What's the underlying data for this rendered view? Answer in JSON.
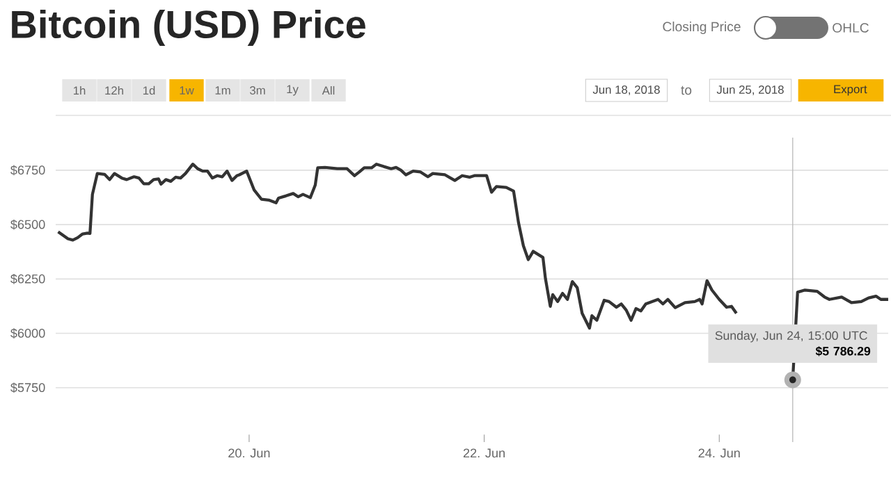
{
  "chart_data": {
    "type": "line",
    "title": "Bitcoin (USD) Price",
    "color": "#333333",
    "grid": "y",
    "x": [
      "2018-06-18T09:00",
      "2018-06-18T11:00",
      "2018-06-18T12:00",
      "2018-06-18T13:00",
      "2018-06-18T14:00",
      "2018-06-18T15:00",
      "2018-06-18T15:30",
      "2018-06-18T16:00",
      "2018-06-18T17:00",
      "2018-06-18T18:30",
      "2018-06-18T19:30",
      "2018-06-18T20:30",
      "2018-06-18T22:00",
      "2018-06-18T23:00",
      "2018-06-19T00:30",
      "2018-06-19T01:30",
      "2018-06-19T02:30",
      "2018-06-19T03:30",
      "2018-06-19T04:30",
      "2018-06-19T05:30",
      "2018-06-19T06:00",
      "2018-06-19T07:00",
      "2018-06-19T08:00",
      "2018-06-19T09:00",
      "2018-06-19T10:00",
      "2018-06-19T11:00",
      "2018-06-19T12:30",
      "2018-06-19T13:30",
      "2018-06-19T14:30",
      "2018-06-19T15:30",
      "2018-06-19T16:30",
      "2018-06-19T17:30",
      "2018-06-19T18:30",
      "2018-06-19T19:30",
      "2018-06-19T20:30",
      "2018-06-19T21:30",
      "2018-06-19T22:00",
      "2018-06-19T23:30",
      "2018-06-20T01:00",
      "2018-06-20T02:30",
      "2018-06-20T04:00",
      "2018-06-20T05:30",
      "2018-06-20T06:00",
      "2018-06-20T07:30",
      "2018-06-20T09:00",
      "2018-06-20T10:00",
      "2018-06-20T11:00",
      "2018-06-20T12:30",
      "2018-06-20T13:30",
      "2018-06-20T14:00",
      "2018-06-20T15:30",
      "2018-06-20T18:00",
      "2018-06-20T20:00",
      "2018-06-20T21:30",
      "2018-06-20T22:30",
      "2018-06-20T23:30",
      "2018-06-21T01:00",
      "2018-06-21T02:00",
      "2018-06-21T03:30",
      "2018-06-21T05:00",
      "2018-06-21T06:00",
      "2018-06-21T07:00",
      "2018-06-21T08:00",
      "2018-06-21T09:30",
      "2018-06-21T11:00",
      "2018-06-21T12:30",
      "2018-06-21T13:30",
      "2018-06-21T16:00",
      "2018-06-21T18:00",
      "2018-06-21T19:30",
      "2018-06-21T21:00",
      "2018-06-21T22:00",
      "2018-06-22T00:30",
      "2018-06-22T01:30",
      "2018-06-22T02:30",
      "2018-06-22T04:30",
      "2018-06-22T06:00",
      "2018-06-22T07:00",
      "2018-06-22T08:00",
      "2018-06-22T09:00",
      "2018-06-22T10:00",
      "2018-06-22T12:00",
      "2018-06-22T12:30",
      "2018-06-22T13:30",
      "2018-06-22T14:00",
      "2018-06-22T15:00",
      "2018-06-22T16:00",
      "2018-06-22T17:00",
      "2018-06-22T18:00",
      "2018-06-22T19:00",
      "2018-06-22T20:00",
      "2018-06-22T21:30",
      "2018-06-22T22:00",
      "2018-06-22T23:00",
      "2018-06-23T00:30",
      "2018-06-23T01:30",
      "2018-06-23T03:00",
      "2018-06-23T04:00",
      "2018-06-23T05:00",
      "2018-06-23T06:00",
      "2018-06-23T07:00",
      "2018-06-23T08:00",
      "2018-06-23T09:00",
      "2018-06-23T11:30",
      "2018-06-23T12:30",
      "2018-06-23T13:30",
      "2018-06-23T15:00",
      "2018-06-23T17:00",
      "2018-06-23T19:00",
      "2018-06-23T20:00",
      "2018-06-23T20:30",
      "2018-06-23T21:30",
      "2018-06-23T22:30",
      "2018-06-24T00:00",
      "2018-06-24T01:30",
      "2018-06-24T02:30",
      "2018-06-24T03:30",
      "2018-06-24T04:00",
      "2018-06-24T15:00",
      "2018-06-24T16:00",
      "2018-06-24T17:30",
      "2018-06-24T20:00",
      "2018-06-24T21:30",
      "2018-06-24T22:30",
      "2018-06-25T01:00",
      "2018-06-25T03:00",
      "2018-06-25T05:00",
      "2018-06-25T06:30",
      "2018-06-25T08:00",
      "2018-06-25T09:00",
      "2018-06-25T10:30"
    ],
    "values": [
      6467,
      6435,
      6429,
      6440,
      6457,
      6461,
      6459,
      6639,
      6735,
      6731,
      6707,
      6735,
      6714,
      6707,
      6720,
      6714,
      6688,
      6688,
      6707,
      6710,
      6686,
      6707,
      6699,
      6718,
      6714,
      6735,
      6778,
      6757,
      6746,
      6746,
      6714,
      6725,
      6720,
      6746,
      6703,
      6725,
      6729,
      6746,
      6660,
      6617,
      6613,
      6600,
      6622,
      6632,
      6643,
      6628,
      6639,
      6624,
      6682,
      6761,
      6763,
      6757,
      6757,
      6725,
      6742,
      6761,
      6761,
      6778,
      6767,
      6757,
      6763,
      6750,
      6729,
      6746,
      6742,
      6720,
      6735,
      6729,
      6703,
      6725,
      6718,
      6725,
      6725,
      6649,
      6675,
      6671,
      6654,
      6510,
      6403,
      6339,
      6377,
      6349,
      6253,
      6124,
      6178,
      6146,
      6184,
      6156,
      6238,
      6210,
      6092,
      6024,
      6081,
      6060,
      6152,
      6146,
      6120,
      6135,
      6107,
      6060,
      6114,
      6103,
      6135,
      6156,
      6135,
      6156,
      6118,
      6141,
      6146,
      6156,
      6135,
      6242,
      6199,
      6156,
      6120,
      6124,
      6092,
      null,
      5786.29,
      6189,
      6199,
      6193,
      6167,
      6156,
      6167,
      6141,
      6146,
      6163,
      6171,
      6156,
      6156
    ],
    "xlim": [
      "2018-06-18T08:30",
      "2018-06-25T10:30"
    ],
    "ylim": [
      5500,
      6900
    ],
    "xticks": [
      {
        "value": "2018-06-20",
        "label": "20. Jun"
      },
      {
        "value": "2018-06-22",
        "label": "22. Jun"
      },
      {
        "value": "2018-06-24",
        "label": "24. Jun"
      }
    ],
    "yticks": [
      {
        "value": 5750,
        "label": "$5750"
      },
      {
        "value": 6000,
        "label": "$6000"
      },
      {
        "value": 6250,
        "label": "$6250"
      },
      {
        "value": 6500,
        "label": "$6500"
      },
      {
        "value": 6750,
        "label": "$6750"
      }
    ],
    "ref_lines": [
      {
        "axis": "x",
        "value": "2018-06-24T15:00",
        "color": "#bbbbbb"
      }
    ],
    "value_labels": [
      null,
      null,
      null,
      null,
      null,
      null,
      null,
      null,
      null,
      null,
      null,
      null,
      null,
      null,
      null,
      null,
      null,
      null,
      null,
      null,
      null,
      null,
      null,
      null,
      null,
      null,
      null,
      null,
      null,
      null,
      null,
      null,
      null,
      null,
      null,
      null,
      null,
      null,
      null,
      null,
      null,
      null,
      null,
      null,
      null,
      null,
      null,
      null,
      null,
      null,
      null,
      null,
      null,
      null,
      null,
      null,
      null,
      null,
      null,
      null,
      null,
      null,
      null,
      null,
      null,
      null,
      null,
      null,
      null,
      null,
      null,
      null,
      null,
      null,
      null,
      null,
      null,
      null,
      null,
      null,
      null,
      null,
      null,
      null,
      null,
      null,
      null,
      null,
      null,
      null,
      null,
      null,
      null,
      null,
      null,
      null,
      null,
      null,
      null,
      null,
      null,
      null,
      null,
      null,
      null,
      null,
      null,
      null,
      null,
      null,
      null,
      null,
      null,
      null,
      null,
      null,
      null,
      null,
      "$5 786.29",
      null,
      null,
      null,
      null,
      null,
      null,
      null,
      null,
      null,
      null,
      null,
      null
    ],
    "annotations": [
      "Sunday, Jun 24, 15:00 UTC",
      "Closing Price",
      "OHLC",
      "1h",
      "12h",
      "1d",
      "1w",
      "1m",
      "3m",
      "1y",
      "All",
      "Jun 18, 2018",
      "to",
      "Jun 25, 2018",
      "Export"
    ]
  }
}
